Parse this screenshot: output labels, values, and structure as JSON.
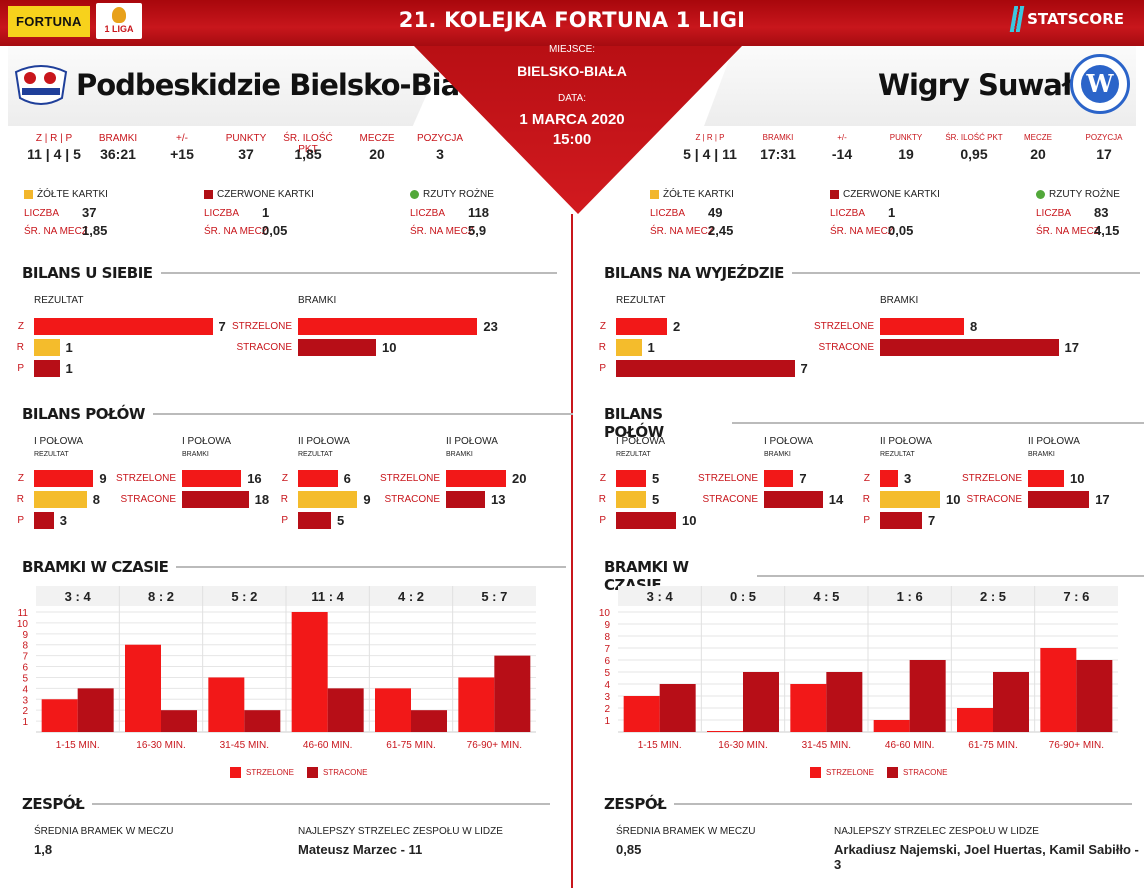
{
  "header": {
    "sponsor": "FORTUNA",
    "league_logo": "1 LIGA",
    "title": "21. KOLEJKA FORTUNA 1 LIGI",
    "provider": "STATSCORE"
  },
  "match": {
    "place_label": "MIEJSCE:",
    "place": "BIELSKO-BIAŁA",
    "date_label": "DATA:",
    "date": "1 MARCA 2020",
    "time": "15:00"
  },
  "labels": {
    "zrp": "Z | R | P",
    "goals": "BRAMKI",
    "diff": "+/-",
    "points": "PUNKTY",
    "avg_points": "ŚR. ILOŚĆ PKT",
    "matches": "MECZE",
    "position": "POZYCJA",
    "yellow": "ŻÓŁTE KARTKI",
    "red": "CZERWONE KARTKI",
    "corners": "RZUTY ROŻNE",
    "count": "LICZBA",
    "per_match": "ŚR. NA MECZ",
    "result": "REZULTAT",
    "bramki": "BRAMKI",
    "z": "Z",
    "r": "R",
    "p": "P",
    "scored": "STRZELONE",
    "conceded": "STRACONE",
    "bilans_polow": "BILANS POŁÓW",
    "first_half": "I POŁOWA",
    "second_half": "II POŁOWA",
    "result_small": "REZULTAT",
    "goals_small": "BRAMKI",
    "bramki_w_czasie": "BRAMKI W CZASIE",
    "legend_scored": "STRZELONE",
    "legend_conceded": "STRACONE",
    "team_section": "ZESPÓŁ",
    "avg_goals": "ŚREDNIA BRAMEK W MECZU",
    "top_scorer": "NAJLEPSZY STRZELEC ZESPOŁU W LIDZE"
  },
  "home": {
    "name": "Podbeskidzie Bielsko-Biała",
    "section_title": "BILANS U SIEBIE",
    "stats": {
      "zrp": "11 | 4 | 5",
      "goals": "36:21",
      "diff": "+15",
      "points": "37",
      "avg_points": "1,85",
      "matches": "20",
      "position": "3"
    },
    "cards": {
      "yellow_count": "37",
      "yellow_avg": "1,85",
      "red_count": "1",
      "red_avg": "0,05",
      "corners_count": "118",
      "corners_avg": "5,9"
    },
    "team": {
      "avg_goals": "1,8",
      "top_scorer": "Mateusz Marzec - 11"
    }
  },
  "away": {
    "name": "Wigry Suwałki",
    "section_title": "BILANS NA WYJEŹDZIE",
    "stats": {
      "zrp": "5 | 4 | 11",
      "goals": "17:31",
      "diff": "-14",
      "points": "19",
      "avg_points": "0,95",
      "matches": "20",
      "position": "17"
    },
    "cards": {
      "yellow_count": "49",
      "yellow_avg": "2,45",
      "red_count": "1",
      "red_avg": "0,05",
      "corners_count": "83",
      "corners_avg": "4,15"
    },
    "team": {
      "avg_goals": "0,85",
      "top_scorer": "Arkadiusz Najemski, Joel Huertas, Kamil Sabiłło - 3"
    }
  },
  "colors": {
    "scored": "#f21818",
    "conceded": "#b70e17",
    "draw": "#f4bc2c",
    "accent": "#c8161c"
  },
  "chart_data": [
    {
      "id": "home_result",
      "type": "bar",
      "orientation": "horizontal",
      "categories": [
        "Z",
        "R",
        "P"
      ],
      "values": [
        7,
        1,
        1
      ],
      "title": "REZULTAT"
    },
    {
      "id": "home_goals",
      "type": "bar",
      "orientation": "horizontal",
      "categories": [
        "STRZELONE",
        "STRACONE"
      ],
      "values": [
        23,
        10
      ],
      "title": "BRAMKI"
    },
    {
      "id": "away_result",
      "type": "bar",
      "orientation": "horizontal",
      "categories": [
        "Z",
        "R",
        "P"
      ],
      "values": [
        2,
        1,
        7
      ],
      "title": "REZULTAT"
    },
    {
      "id": "away_goals",
      "type": "bar",
      "orientation": "horizontal",
      "categories": [
        "STRZELONE",
        "STRACONE"
      ],
      "values": [
        8,
        17
      ],
      "title": "BRAMKI"
    },
    {
      "id": "home_h1_result",
      "type": "bar",
      "orientation": "horizontal",
      "categories": [
        "Z",
        "R",
        "P"
      ],
      "values": [
        9,
        8,
        3
      ],
      "title": "I POŁOWA"
    },
    {
      "id": "home_h1_goals",
      "type": "bar",
      "orientation": "horizontal",
      "categories": [
        "STRZELONE",
        "STRACONE"
      ],
      "values": [
        16,
        18
      ],
      "title": "I POŁOWA"
    },
    {
      "id": "home_h2_result",
      "type": "bar",
      "orientation": "horizontal",
      "categories": [
        "Z",
        "R",
        "P"
      ],
      "values": [
        6,
        9,
        5
      ],
      "title": "II POŁOWA"
    },
    {
      "id": "home_h2_goals",
      "type": "bar",
      "orientation": "horizontal",
      "categories": [
        "STRZELONE",
        "STRACONE"
      ],
      "values": [
        20,
        13
      ],
      "title": "II POŁOWA"
    },
    {
      "id": "away_h1_result",
      "type": "bar",
      "orientation": "horizontal",
      "categories": [
        "Z",
        "R",
        "P"
      ],
      "values": [
        5,
        5,
        10
      ],
      "title": "I POŁOWA"
    },
    {
      "id": "away_h1_goals",
      "type": "bar",
      "orientation": "horizontal",
      "categories": [
        "STRZELONE",
        "STRACONE"
      ],
      "values": [
        7,
        14
      ],
      "title": "I POŁOWA"
    },
    {
      "id": "away_h2_result",
      "type": "bar",
      "orientation": "horizontal",
      "categories": [
        "Z",
        "R",
        "P"
      ],
      "values": [
        3,
        10,
        7
      ],
      "title": "II POŁOWA"
    },
    {
      "id": "away_h2_goals",
      "type": "bar",
      "orientation": "horizontal",
      "categories": [
        "STRZELONE",
        "STRACONE"
      ],
      "values": [
        10,
        17
      ],
      "title": "II POŁOWA"
    },
    {
      "id": "home_time",
      "type": "bar",
      "title": "BRAMKI W CZASIE",
      "categories": [
        "1-15 MIN.",
        "16-30 MIN.",
        "31-45 MIN.",
        "46-60 MIN.",
        "61-75 MIN.",
        "76-90+ MIN."
      ],
      "score_labels": [
        "3 : 4",
        "8 : 2",
        "5 : 2",
        "11 : 4",
        "4 : 2",
        "5 : 7"
      ],
      "series": [
        {
          "name": "STRZELONE",
          "values": [
            3,
            8,
            5,
            11,
            4,
            5
          ]
        },
        {
          "name": "STRACONE",
          "values": [
            4,
            2,
            2,
            4,
            2,
            7
          ]
        }
      ],
      "ylim": [
        0,
        11
      ],
      "yticks": [
        1,
        2,
        3,
        4,
        5,
        6,
        7,
        8,
        9,
        10,
        11
      ],
      "grid": true,
      "legend": "bottom"
    },
    {
      "id": "away_time",
      "type": "bar",
      "title": "BRAMKI W CZASIE",
      "categories": [
        "1-15 MIN.",
        "16-30 MIN.",
        "31-45 MIN.",
        "46-60 MIN.",
        "61-75 MIN.",
        "76-90+ MIN."
      ],
      "score_labels": [
        "3 : 4",
        "0 : 5",
        "4 : 5",
        "1 : 6",
        "2 : 5",
        "7 : 6"
      ],
      "series": [
        {
          "name": "STRZELONE",
          "values": [
            3,
            0,
            4,
            1,
            2,
            7
          ]
        },
        {
          "name": "STRACONE",
          "values": [
            4,
            5,
            5,
            6,
            5,
            6
          ]
        }
      ],
      "ylim": [
        0,
        10
      ],
      "yticks": [
        1,
        2,
        3,
        4,
        5,
        6,
        7,
        8,
        9,
        10
      ],
      "grid": true,
      "legend": "bottom"
    }
  ]
}
